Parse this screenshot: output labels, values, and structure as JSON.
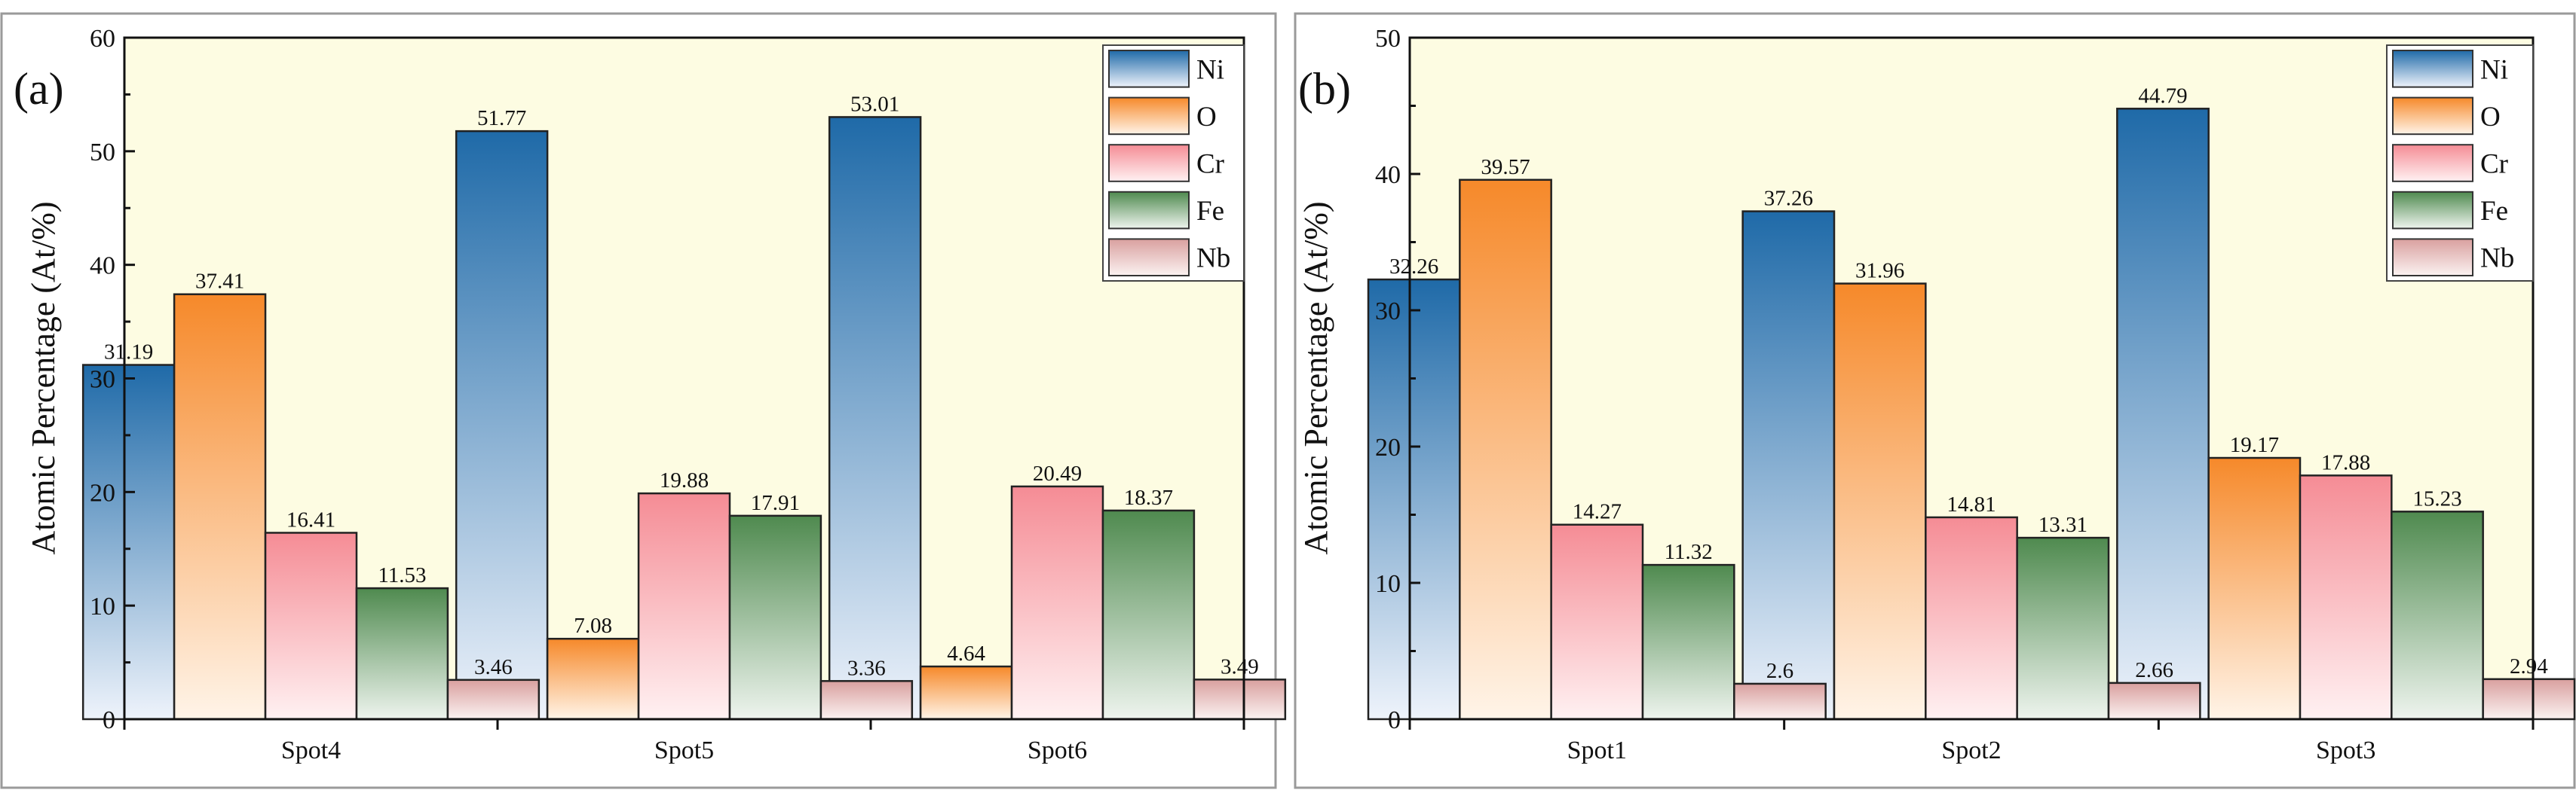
{
  "chart_data": [
    {
      "type": "bar",
      "panel_label": "(a)",
      "categories": [
        "Spot4",
        "Spot5",
        "Spot6"
      ],
      "series": [
        {
          "name": "Ni",
          "values": [
            31.19,
            51.77,
            53.01
          ],
          "value_labels": [
            "31.19",
            "51.77",
            "53.01"
          ]
        },
        {
          "name": "O",
          "values": [
            37.41,
            7.08,
            4.64
          ],
          "value_labels": [
            "37.41",
            "7.08",
            "4.64"
          ]
        },
        {
          "name": "Cr",
          "values": [
            16.41,
            19.88,
            20.49
          ],
          "value_labels": [
            "16.41",
            "19.88",
            "20.49"
          ]
        },
        {
          "name": "Fe",
          "values": [
            11.53,
            17.91,
            18.37
          ],
          "value_labels": [
            "11.53",
            "17.91",
            "18.37"
          ]
        },
        {
          "name": "Nb",
          "values": [
            3.46,
            3.36,
            3.49
          ],
          "value_labels": [
            "3.46",
            "3.36",
            "3.49"
          ]
        }
      ],
      "xlabel": "",
      "ylabel": "Atomic Percentage (At/%)",
      "ylim": [
        0,
        60
      ],
      "yticks": [
        0,
        10,
        20,
        30,
        40,
        50,
        60
      ],
      "legend_position": "top-right",
      "grid": false
    },
    {
      "type": "bar",
      "panel_label": "(b)",
      "categories": [
        "Spot1",
        "Spot2",
        "Spot3"
      ],
      "series": [
        {
          "name": "Ni",
          "values": [
            32.26,
            37.26,
            44.79
          ],
          "value_labels": [
            "32.26",
            "37.26",
            "44.79"
          ]
        },
        {
          "name": "O",
          "values": [
            39.57,
            31.96,
            19.17
          ],
          "value_labels": [
            "39.57",
            "31.96",
            "19.17"
          ]
        },
        {
          "name": "Cr",
          "values": [
            14.27,
            14.81,
            17.88
          ],
          "value_labels": [
            "14.27",
            "14.81",
            "17.88"
          ]
        },
        {
          "name": "Fe",
          "values": [
            11.32,
            13.31,
            15.23
          ],
          "value_labels": [
            "11.32",
            "13.31",
            "15.23"
          ]
        },
        {
          "name": "Nb",
          "values": [
            2.6,
            2.66,
            2.94
          ],
          "value_labels": [
            "2.6",
            "2.66",
            "2.94"
          ]
        }
      ],
      "xlabel": "",
      "ylabel": "Atomic Percentage (At/%)",
      "ylim": [
        0,
        50
      ],
      "yticks": [
        0,
        10,
        20,
        30,
        40,
        50
      ],
      "legend_position": "top-right",
      "grid": false
    }
  ],
  "colors": {
    "plot_background": "#fdfce2",
    "Ni": {
      "top": "#1f6aa8",
      "bottom": "#eef3fb"
    },
    "O": {
      "top": "#f6892a",
      "bottom": "#fff4e8"
    },
    "Cr": {
      "top": "#f58c95",
      "bottom": "#fff1f2"
    },
    "Fe": {
      "top": "#4f8a4f",
      "bottom": "#eef4ee"
    },
    "Nb": {
      "top": "#d9a09f",
      "bottom": "#fbf2f1"
    }
  }
}
